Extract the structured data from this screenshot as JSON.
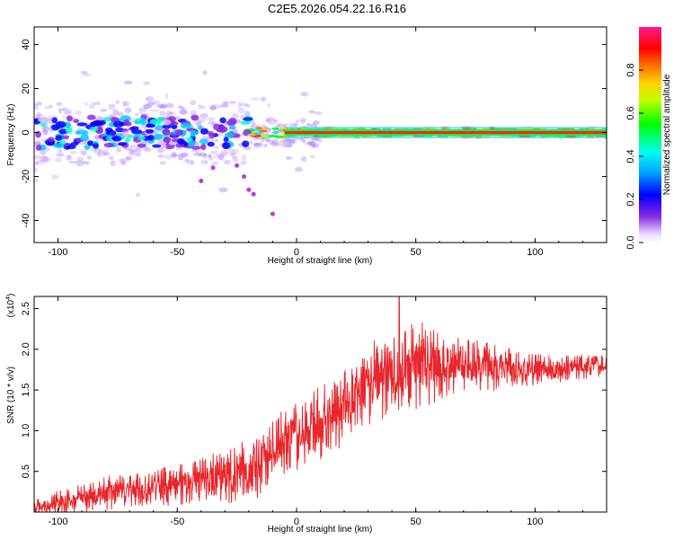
{
  "figure_title": "C2E5.2026.054.22.16.R16",
  "chart_data": [
    {
      "id": "spectrogram",
      "type": "heatmap",
      "title": "C2E5.2026.054.22.16.R16",
      "xlabel": "Height of straight line (km)",
      "ylabel": "Frequency (Hz)",
      "xlim": [
        -110,
        130
      ],
      "ylim": [
        -50,
        48
      ],
      "xticks": [
        -100,
        -50,
        0,
        50,
        100
      ],
      "yticks": [
        -40,
        -20,
        0,
        20,
        40
      ],
      "colorbar": {
        "label": "Normalized spectral amplitude",
        "range": [
          0.0,
          1.0
        ],
        "ticks": [
          "0.0",
          "0.2",
          "0.4",
          "0.6",
          "0.8"
        ],
        "tick_values": [
          0.0,
          0.2,
          0.4,
          0.6,
          0.8
        ],
        "colormap": [
          "#ffffff",
          "#8a2be2",
          "#0000ff",
          "#00e5ff",
          "#00ff00",
          "#ffff00",
          "#ff8000",
          "#ff0000",
          "#ff1493"
        ]
      },
      "description_points": {
        "main_band_center_hz": 0,
        "band_halfwidth_hz_left": 6,
        "band_halfwidth_hz_right": 2,
        "tail_points": [
          [
            -25,
            -15
          ],
          [
            -22,
            -20
          ],
          [
            -20,
            -26
          ],
          [
            -18,
            -28
          ],
          [
            -35,
            -16
          ],
          [
            -40,
            -22
          ],
          [
            -10,
            -37
          ]
        ]
      }
    },
    {
      "id": "snr",
      "type": "line",
      "xlabel": "Height of straight line (km)",
      "ylabel": "SNR (10 * v/v)",
      "scale_label": "(x10",
      "scale_exp": "4",
      "scale_close": ")",
      "xlim": [
        -110,
        130
      ],
      "ylim": [
        0,
        2.65
      ],
      "xticks": [
        -100,
        -50,
        0,
        50,
        100
      ],
      "yticks": [
        0.5,
        1.0,
        1.5,
        2.0,
        2.5
      ],
      "ytick_labels": [
        "0.5",
        "1.0",
        "1.5",
        "2.0",
        "2.5"
      ],
      "series": [
        {
          "name": "SNR",
          "color": "#e8262b",
          "trend_x": [
            -110,
            -100,
            -80,
            -60,
            -50,
            -40,
            -30,
            -20,
            -17,
            -15,
            -10,
            0,
            10,
            20,
            30,
            40,
            50,
            60,
            80,
            100,
            120,
            130
          ],
          "trend_y": [
            0.05,
            0.12,
            0.22,
            0.3,
            0.33,
            0.38,
            0.45,
            0.52,
            0.55,
            0.65,
            0.8,
            0.95,
            1.1,
            1.3,
            1.55,
            1.72,
            1.8,
            1.82,
            1.78,
            1.75,
            1.78,
            1.8
          ],
          "noise_amplitude": [
            0.1,
            0.14,
            0.22,
            0.22,
            0.25,
            0.28,
            0.35,
            0.4,
            0.4,
            0.42,
            0.45,
            0.45,
            0.45,
            0.48,
            0.5,
            0.55,
            0.55,
            0.45,
            0.3,
            0.2,
            0.15,
            0.12
          ],
          "peak_value": 2.65,
          "peak_x": 43
        }
      ]
    }
  ]
}
